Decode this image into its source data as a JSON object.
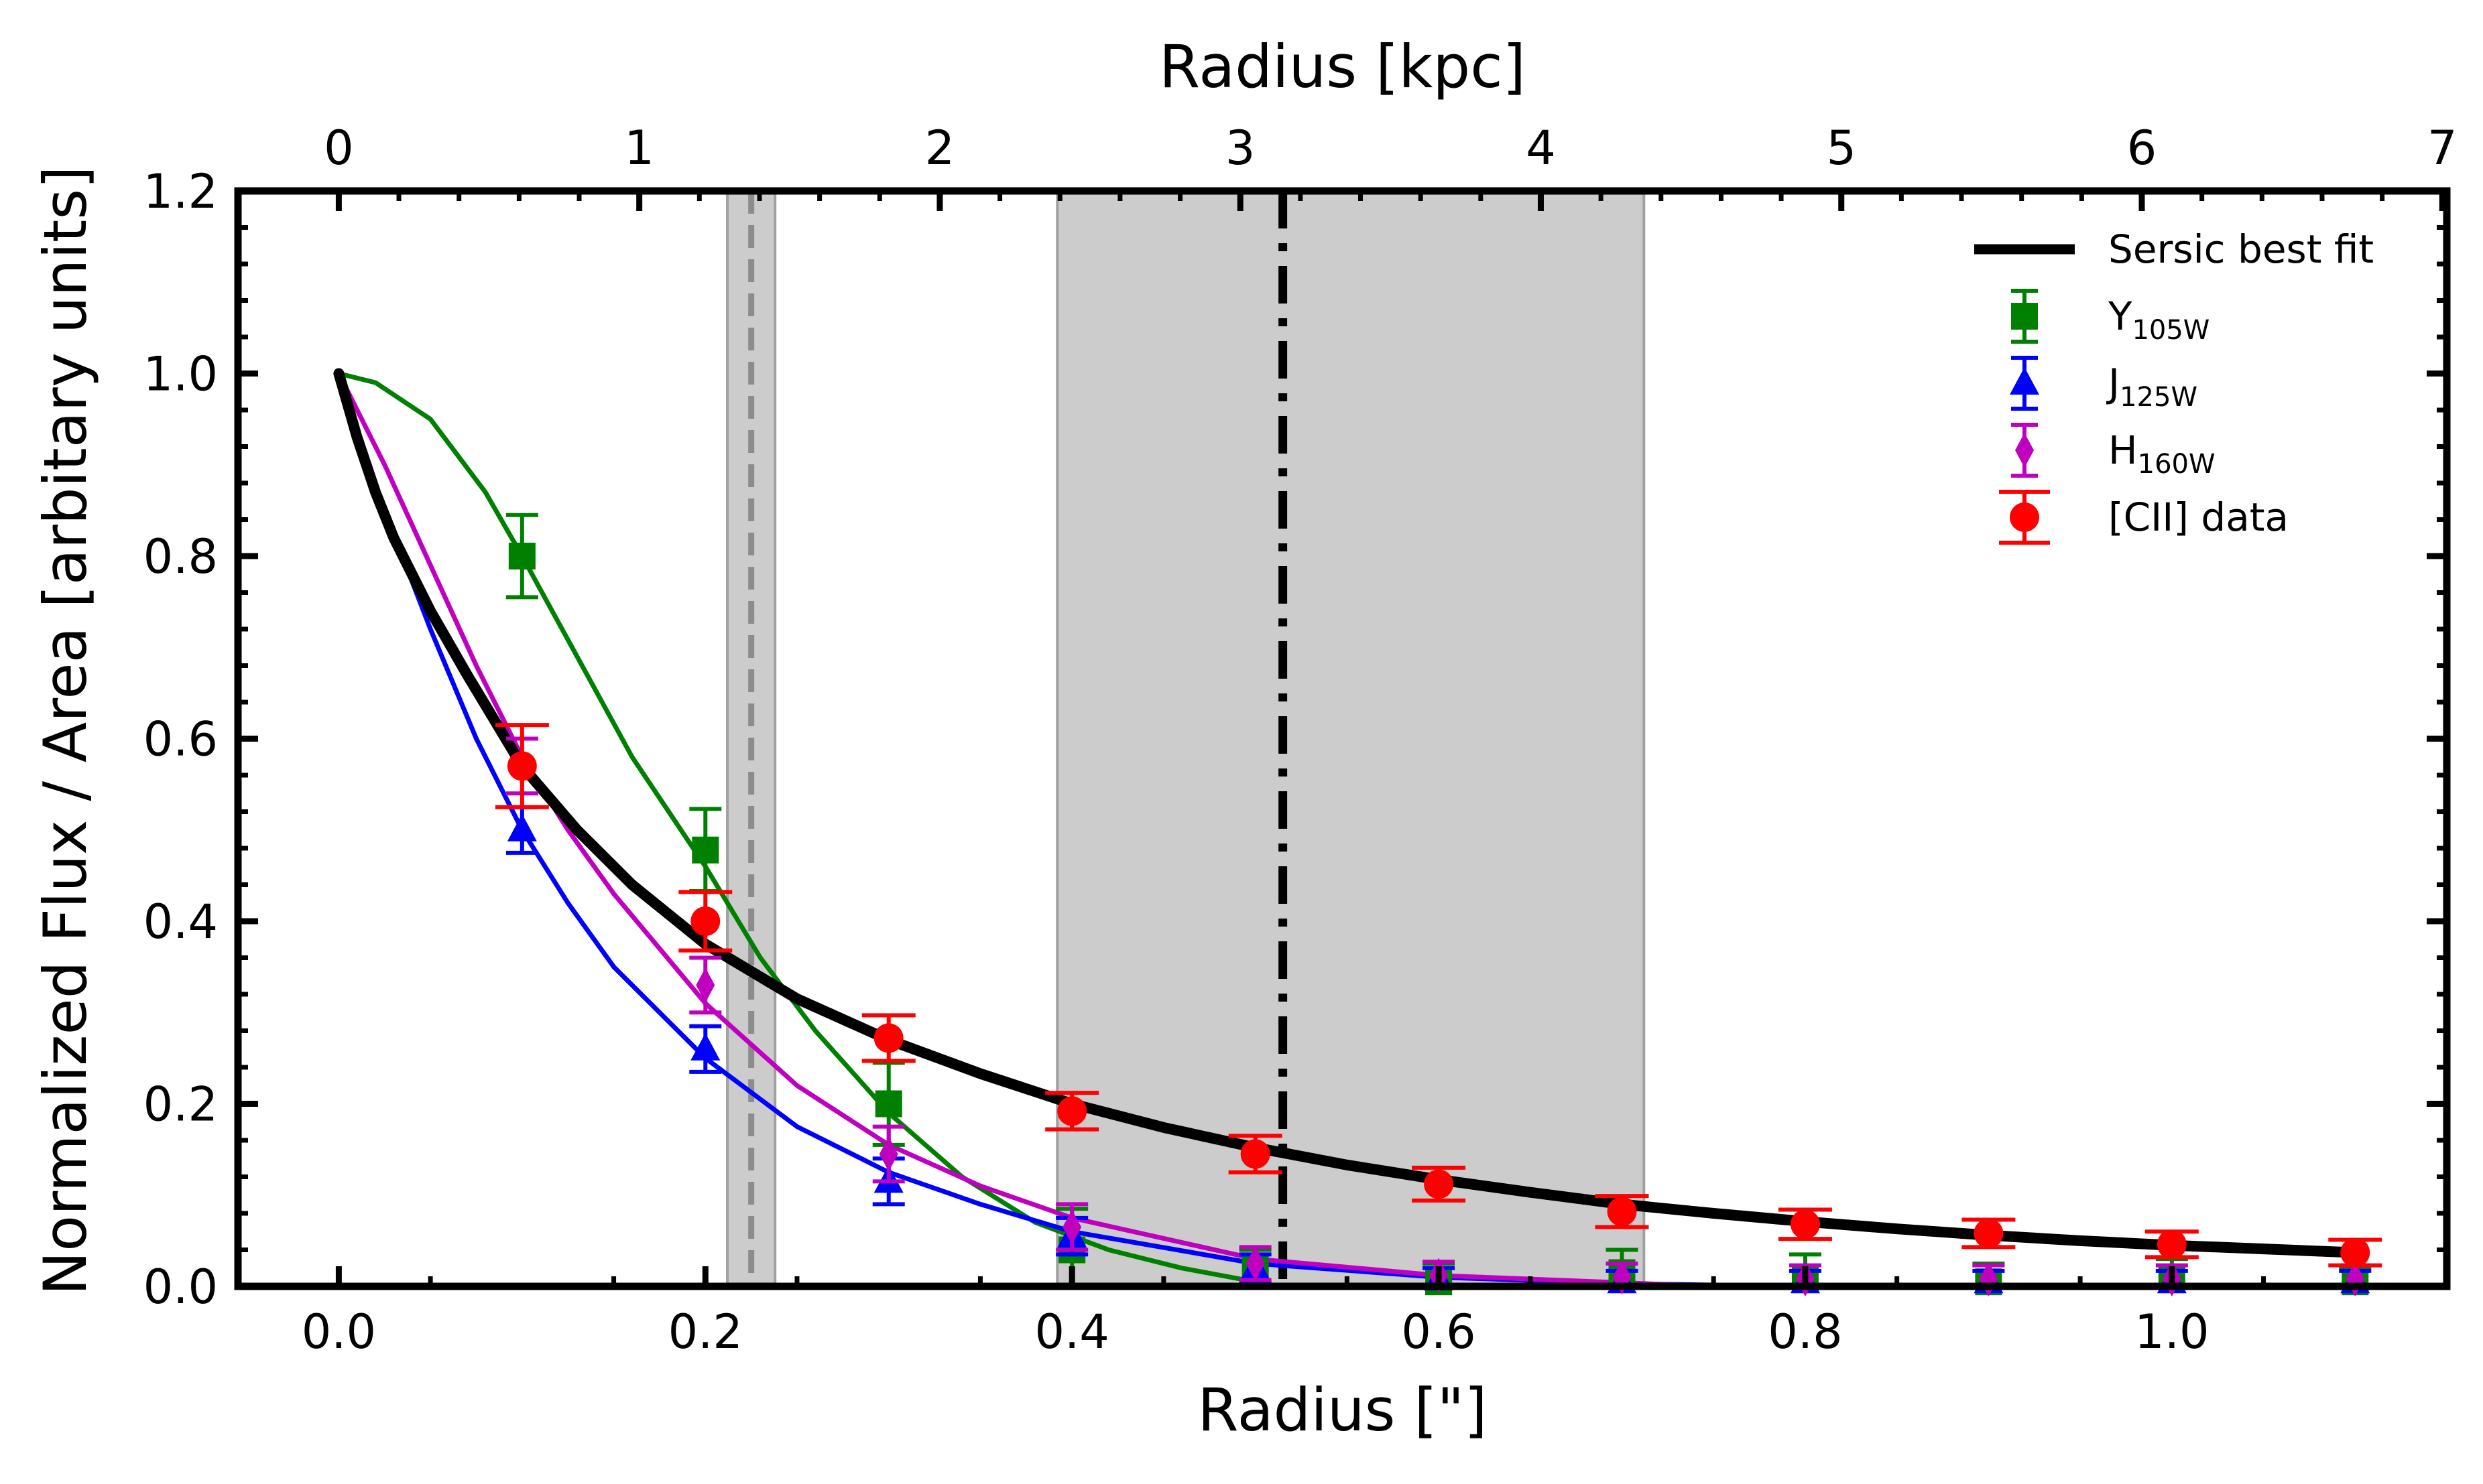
{
  "chart_data": {
    "type": "line",
    "xlabel": "Radius [\"]",
    "x2label": "Radius [kpc]",
    "ylabel": "Normalized Flux / Area [arbitary units]",
    "xlim": [
      -0.055,
      1.15
    ],
    "ylim": [
      0,
      1.2
    ],
    "x_ticks": [
      0.0,
      0.2,
      0.4,
      0.6,
      0.8,
      1.0
    ],
    "x_tick_labels": [
      "0.0",
      "0.2",
      "0.4",
      "0.6",
      "0.8",
      "1.0"
    ],
    "y_ticks": [
      0.0,
      0.2,
      0.4,
      0.6,
      0.8,
      1.0,
      1.2
    ],
    "y_tick_labels": [
      "0.0",
      "0.2",
      "0.4",
      "0.6",
      "0.8",
      "1.0",
      "1.2"
    ],
    "kpc_per_arcsec": 6.1,
    "x2_ticks": [
      0,
      1,
      2,
      3,
      4,
      5,
      6,
      7
    ],
    "x2_tick_labels": [
      "0",
      "1",
      "2",
      "3",
      "4",
      "5",
      "6",
      "7"
    ],
    "shaded_regions": [
      {
        "x": [
          0.212,
          0.238
        ],
        "line": 0.225,
        "line_style": "dashed",
        "color": "#cccccc"
      },
      {
        "x": [
          0.392,
          0.712
        ],
        "color": "#cccccc"
      }
    ],
    "vertical_lines": [
      {
        "x": 0.515,
        "style": "dashdot",
        "color": "#000000"
      }
    ],
    "series": [
      {
        "name": "Sersic best fit",
        "kind": "curve",
        "color": "#000000",
        "x": [
          0,
          0.01,
          0.02,
          0.03,
          0.05,
          0.07,
          0.1,
          0.13,
          0.16,
          0.2,
          0.25,
          0.3,
          0.35,
          0.4,
          0.45,
          0.5,
          0.55,
          0.6,
          0.65,
          0.7,
          0.75,
          0.8,
          0.85,
          0.9,
          0.95,
          1.0,
          1.05,
          1.1
        ],
        "y": [
          1.0,
          0.93,
          0.87,
          0.82,
          0.74,
          0.67,
          0.57,
          0.5,
          0.44,
          0.375,
          0.315,
          0.27,
          0.233,
          0.2,
          0.174,
          0.152,
          0.133,
          0.117,
          0.103,
          0.09,
          0.08,
          0.071,
          0.063,
          0.056,
          0.05,
          0.045,
          0.041,
          0.037
        ]
      },
      {
        "name": "Y",
        "name_sub": "105W",
        "kind": "points",
        "marker": "square",
        "color": "#008000",
        "x": [
          0.1,
          0.2,
          0.3,
          0.4,
          0.5,
          0.6,
          0.7,
          0.8,
          0.9,
          1.0,
          1.1
        ],
        "y": [
          0.8,
          0.478,
          0.2,
          0.04,
          0.02,
          0.005,
          0.015,
          0.01,
          0.005,
          0.01,
          0.005
        ],
        "err": [
          0.045,
          0.045,
          0.045,
          0.045,
          0.02,
          0.02,
          0.025,
          0.025,
          0.02,
          0.02,
          0.015
        ],
        "fit_x": [
          0,
          0.02,
          0.05,
          0.08,
          0.1,
          0.13,
          0.16,
          0.2,
          0.23,
          0.26,
          0.3,
          0.34,
          0.38,
          0.42,
          0.46,
          0.5
        ],
        "fit_y": [
          1.0,
          0.99,
          0.95,
          0.87,
          0.8,
          0.69,
          0.58,
          0.46,
          0.36,
          0.28,
          0.19,
          0.12,
          0.07,
          0.04,
          0.02,
          0.005
        ]
      },
      {
        "name": "J",
        "name_sub": "125W",
        "kind": "points",
        "marker": "triangle",
        "color": "#0000ff",
        "x": [
          0.1,
          0.2,
          0.3,
          0.4,
          0.5,
          0.6,
          0.7,
          0.8,
          0.9,
          1.0,
          1.1
        ],
        "y": [
          0.5,
          0.26,
          0.115,
          0.055,
          0.02,
          0.008,
          0.005,
          0.005,
          0.005,
          0.005,
          0.005
        ],
        "err": [
          0.025,
          0.025,
          0.025,
          0.02,
          0.015,
          0.012,
          0.012,
          0.012,
          0.012,
          0.012,
          0.012
        ],
        "fit_x": [
          0,
          0.025,
          0.05,
          0.075,
          0.1,
          0.125,
          0.15,
          0.2,
          0.25,
          0.3,
          0.35,
          0.4,
          0.5,
          0.6,
          0.7,
          0.8
        ],
        "fit_y": [
          1.0,
          0.85,
          0.72,
          0.6,
          0.5,
          0.42,
          0.35,
          0.25,
          0.175,
          0.125,
          0.09,
          0.06,
          0.025,
          0.01,
          0.003,
          0.0
        ]
      },
      {
        "name": "H",
        "name_sub": "160W",
        "kind": "points",
        "marker": "diamond",
        "color": "#bf00bf",
        "x": [
          0.1,
          0.2,
          0.3,
          0.4,
          0.5,
          0.6,
          0.7,
          0.8,
          0.9,
          1.0,
          1.1
        ],
        "y": [
          0.57,
          0.33,
          0.145,
          0.065,
          0.025,
          0.012,
          0.01,
          0.008,
          0.008,
          0.008,
          0.008
        ],
        "err": [
          0.03,
          0.03,
          0.03,
          0.025,
          0.018,
          0.015,
          0.015,
          0.015,
          0.015,
          0.015,
          0.015
        ],
        "fit_x": [
          0,
          0.025,
          0.05,
          0.075,
          0.1,
          0.125,
          0.15,
          0.2,
          0.25,
          0.3,
          0.35,
          0.4,
          0.5,
          0.6,
          0.7,
          0.75
        ],
        "fit_y": [
          1.0,
          0.9,
          0.79,
          0.68,
          0.58,
          0.5,
          0.43,
          0.31,
          0.22,
          0.155,
          0.11,
          0.075,
          0.03,
          0.012,
          0.004,
          0.0
        ]
      },
      {
        "name": "[CII] data",
        "kind": "points",
        "marker": "circle",
        "color": "#ff0000",
        "x": [
          0.1,
          0.2,
          0.3,
          0.4,
          0.5,
          0.6,
          0.7,
          0.8,
          0.9,
          1.0,
          1.1
        ],
        "y": [
          0.57,
          0.4,
          0.272,
          0.192,
          0.145,
          0.112,
          0.082,
          0.068,
          0.058,
          0.046,
          0.037
        ],
        "err": [
          0.045,
          0.032,
          0.025,
          0.02,
          0.02,
          0.018,
          0.017,
          0.016,
          0.015,
          0.014,
          0.014
        ]
      }
    ]
  }
}
